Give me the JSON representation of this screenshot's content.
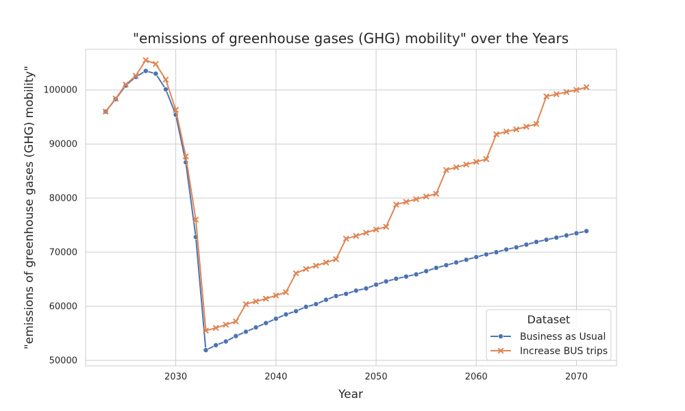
{
  "chart_data": {
    "type": "line",
    "title": "\"emissions of greenhouse gases (GHG) mobility\" over the Years",
    "xlabel": "Year",
    "ylabel": "\"emissions of greenhouse gases (GHG) mobility\"",
    "xlim": [
      2021,
      2074
    ],
    "ylim": [
      49000,
      107500
    ],
    "x_ticks": [
      2030,
      2040,
      2050,
      2060,
      2070
    ],
    "y_ticks": [
      50000,
      60000,
      70000,
      80000,
      90000,
      100000
    ],
    "grid": true,
    "legend": {
      "title": "Dataset",
      "placement": "lower-right"
    },
    "x": [
      2023,
      2024,
      2025,
      2026,
      2027,
      2028,
      2029,
      2030,
      2031,
      2032,
      2033,
      2034,
      2035,
      2036,
      2037,
      2038,
      2039,
      2040,
      2041,
      2042,
      2043,
      2044,
      2045,
      2046,
      2047,
      2048,
      2049,
      2050,
      2051,
      2052,
      2053,
      2054,
      2055,
      2056,
      2057,
      2058,
      2059,
      2060,
      2061,
      2062,
      2063,
      2064,
      2065,
      2066,
      2067,
      2068,
      2069,
      2070,
      2071
    ],
    "series": [
      {
        "name": "Business as Usual",
        "color": "#4c72b0",
        "marker": "circle",
        "values": [
          96000,
          98300,
          100800,
          102400,
          103500,
          103000,
          100100,
          95400,
          86600,
          72800,
          51900,
          52800,
          53500,
          54500,
          55300,
          56100,
          56900,
          57700,
          58500,
          59100,
          59900,
          60400,
          61200,
          61900,
          62300,
          62900,
          63300,
          64000,
          64600,
          65100,
          65500,
          65900,
          66500,
          67100,
          67600,
          68100,
          68600,
          69100,
          69600,
          70000,
          70500,
          70900,
          71400,
          71900,
          72300,
          72700,
          73100,
          73500,
          73900
        ]
      },
      {
        "name": "Increase BUS trips",
        "color": "#dd8452",
        "marker": "x",
        "values": [
          96000,
          98400,
          101000,
          102600,
          105500,
          104800,
          101900,
          96300,
          87700,
          76000,
          55500,
          56000,
          56600,
          57200,
          60400,
          60900,
          61400,
          62000,
          62600,
          66100,
          66900,
          67500,
          68100,
          68700,
          72500,
          73000,
          73600,
          74200,
          74700,
          78800,
          79300,
          79800,
          80300,
          80800,
          85200,
          85700,
          86200,
          86700,
          87200,
          91800,
          92300,
          92700,
          93200,
          93700,
          98800,
          99200,
          99600,
          100000,
          100500
        ]
      }
    ]
  }
}
